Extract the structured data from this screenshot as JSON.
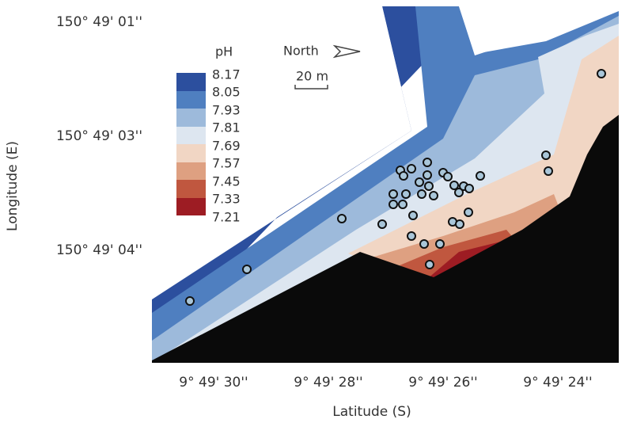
{
  "axes": {
    "y_title": "Longitude (E)",
    "y_ticks": [
      "150° 49' 01''",
      "150° 49' 03''",
      "150° 49' 04''"
    ],
    "x_title": "Latitude (S)",
    "x_ticks": [
      "9° 49' 30''",
      "9° 49' 28''",
      "9° 49' 26''",
      "9° 49' 24''"
    ]
  },
  "legend": {
    "title": "pH",
    "labels": [
      "8.17",
      "8.05",
      "7.93",
      "7.81",
      "7.69",
      "7.57",
      "7.45",
      "7.33",
      "7.21"
    ]
  },
  "north_label": "North",
  "scale_label": "20 m"
}
